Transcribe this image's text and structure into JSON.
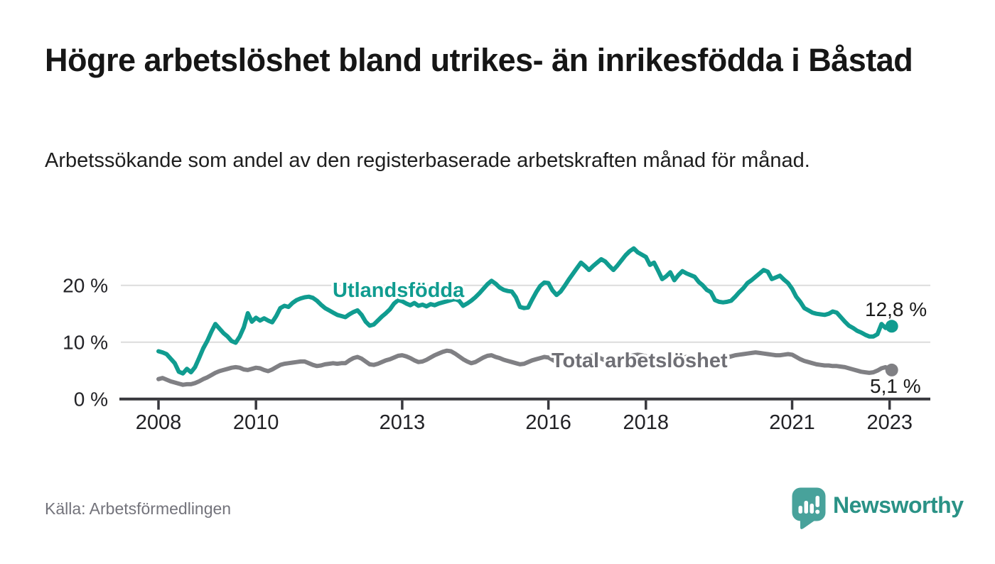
{
  "header": {
    "title": "Högre arbetslöshet bland utrikes- än inrikesfödda i Båstad",
    "subtitle": "Arbetssökande som andel av den registerbaserade arbetskraften månad för månad."
  },
  "chart_data": {
    "type": "line",
    "x_start": "2008-01",
    "x_end": "2023-01",
    "x_interval": "month",
    "grid": "horizontal-only",
    "legend_position": "inline-labels",
    "ylim": [
      0,
      27.5
    ],
    "y_ticks": [
      {
        "value": 0,
        "label": "0 %"
      },
      {
        "value": 10,
        "label": "10 %"
      },
      {
        "value": 20,
        "label": "20 %"
      }
    ],
    "x_ticks": [
      {
        "year": 2008,
        "label": "2008"
      },
      {
        "year": 2010,
        "label": "2010"
      },
      {
        "year": 2013,
        "label": "2013"
      },
      {
        "year": 2016,
        "label": "2016"
      },
      {
        "year": 2018,
        "label": "2018"
      },
      {
        "year": 2021,
        "label": "2021"
      },
      {
        "year": 2023,
        "label": "2023"
      }
    ],
    "series": [
      {
        "name": "Utlandsfödda",
        "color": "#109c90",
        "end_label": "12,8 %",
        "end_value": 12.8,
        "values": [
          8.4,
          8.2,
          7.9,
          7.1,
          6.3,
          4.8,
          4.5,
          5.3,
          4.7,
          5.6,
          7.2,
          8.9,
          10.2,
          11.8,
          13.2,
          12.4,
          11.6,
          11.0,
          10.2,
          9.9,
          11.0,
          12.6,
          15.1,
          13.6,
          14.3,
          13.8,
          14.2,
          13.8,
          13.5,
          14.6,
          16.0,
          16.4,
          16.2,
          16.9,
          17.4,
          17.7,
          17.9,
          18.0,
          17.8,
          17.3,
          16.6,
          16.0,
          15.6,
          15.2,
          14.8,
          14.6,
          14.4,
          14.9,
          15.3,
          15.6,
          14.8,
          13.6,
          12.9,
          13.1,
          13.8,
          14.5,
          15.1,
          15.8,
          16.8,
          17.4,
          17.2,
          16.8,
          16.5,
          16.9,
          16.4,
          16.6,
          16.3,
          16.7,
          16.5,
          16.8,
          17.0,
          17.2,
          17.4,
          17.6,
          17.3,
          16.4,
          16.8,
          17.3,
          17.9,
          18.6,
          19.4,
          20.2,
          20.8,
          20.3,
          19.6,
          19.2,
          19.0,
          18.9,
          17.9,
          16.2,
          16.0,
          16.1,
          17.5,
          18.8,
          19.9,
          20.5,
          20.4,
          19.1,
          18.3,
          18.9,
          19.9,
          21.0,
          22.0,
          23.0,
          24.0,
          23.4,
          22.7,
          23.4,
          24.0,
          24.6,
          24.2,
          23.4,
          22.7,
          23.5,
          24.4,
          25.3,
          26.0,
          26.5,
          25.8,
          25.4,
          25.0,
          23.6,
          24.0,
          22.6,
          21.1,
          21.6,
          22.3,
          20.9,
          21.8,
          22.5,
          22.1,
          21.8,
          21.5,
          20.6,
          20.0,
          19.2,
          18.8,
          17.4,
          17.1,
          17.0,
          17.1,
          17.3,
          18.0,
          18.8,
          19.5,
          20.4,
          20.9,
          21.5,
          22.1,
          22.7,
          22.4,
          21.1,
          21.4,
          21.7,
          21.0,
          20.4,
          19.4,
          18.0,
          17.1,
          16.0,
          15.6,
          15.2,
          15.0,
          14.9,
          14.8,
          15.0,
          15.4,
          15.2,
          14.4,
          13.6,
          12.9,
          12.5,
          12.0,
          11.7,
          11.3,
          11.0,
          11.0,
          11.4,
          13.2,
          12.5,
          12.8
        ]
      },
      {
        "name": "Total arbetslöshet",
        "color": "#808084",
        "label_color": "#6f6f75",
        "end_label": "5,1 %",
        "end_value": 5.1,
        "values": [
          3.5,
          3.7,
          3.4,
          3.1,
          2.9,
          2.7,
          2.5,
          2.6,
          2.6,
          2.8,
          3.1,
          3.5,
          3.8,
          4.2,
          4.6,
          4.9,
          5.1,
          5.3,
          5.5,
          5.6,
          5.5,
          5.2,
          5.1,
          5.3,
          5.5,
          5.4,
          5.1,
          4.9,
          5.2,
          5.6,
          6.0,
          6.2,
          6.3,
          6.4,
          6.5,
          6.6,
          6.6,
          6.3,
          6.0,
          5.8,
          5.9,
          6.1,
          6.2,
          6.3,
          6.2,
          6.3,
          6.3,
          6.8,
          7.2,
          7.4,
          7.1,
          6.6,
          6.1,
          6.0,
          6.2,
          6.5,
          6.8,
          7.0,
          7.3,
          7.6,
          7.7,
          7.5,
          7.2,
          6.8,
          6.5,
          6.6,
          6.9,
          7.3,
          7.7,
          8.0,
          8.3,
          8.5,
          8.4,
          8.0,
          7.5,
          7.0,
          6.6,
          6.3,
          6.5,
          6.9,
          7.3,
          7.6,
          7.7,
          7.4,
          7.2,
          6.9,
          6.7,
          6.5,
          6.3,
          6.1,
          6.2,
          6.5,
          6.8,
          7.0,
          7.2,
          7.4,
          7.3,
          6.9,
          6.5,
          6.3,
          6.2,
          6.4,
          6.7,
          7.0,
          7.2,
          7.4,
          7.5,
          7.6,
          7.4,
          7.1,
          6.8,
          6.5,
          6.4,
          6.6,
          6.9,
          7.2,
          7.5,
          7.7,
          7.8,
          7.7,
          7.5,
          7.2,
          6.9,
          6.6,
          6.4,
          6.5,
          6.8,
          7.0,
          7.2,
          7.3,
          7.4,
          7.3,
          7.1,
          6.9,
          6.6,
          6.4,
          6.3,
          6.5,
          6.8,
          7.1,
          7.3,
          7.5,
          7.7,
          7.8,
          7.9,
          8.0,
          8.1,
          8.2,
          8.1,
          8.0,
          7.9,
          7.8,
          7.7,
          7.7,
          7.8,
          7.9,
          7.8,
          7.4,
          7.0,
          6.7,
          6.5,
          6.3,
          6.1,
          6.0,
          5.9,
          5.9,
          5.8,
          5.8,
          5.7,
          5.6,
          5.4,
          5.2,
          5.0,
          4.8,
          4.7,
          4.6,
          4.7,
          5.0,
          5.4,
          5.6,
          5.1
        ]
      }
    ]
  },
  "footer": {
    "source": "Källa: Arbetsförmedlingen",
    "brand": "Newsworthy",
    "brand_color": "#2a9286",
    "brand_icon": "speech-bubble-bar-chart"
  }
}
